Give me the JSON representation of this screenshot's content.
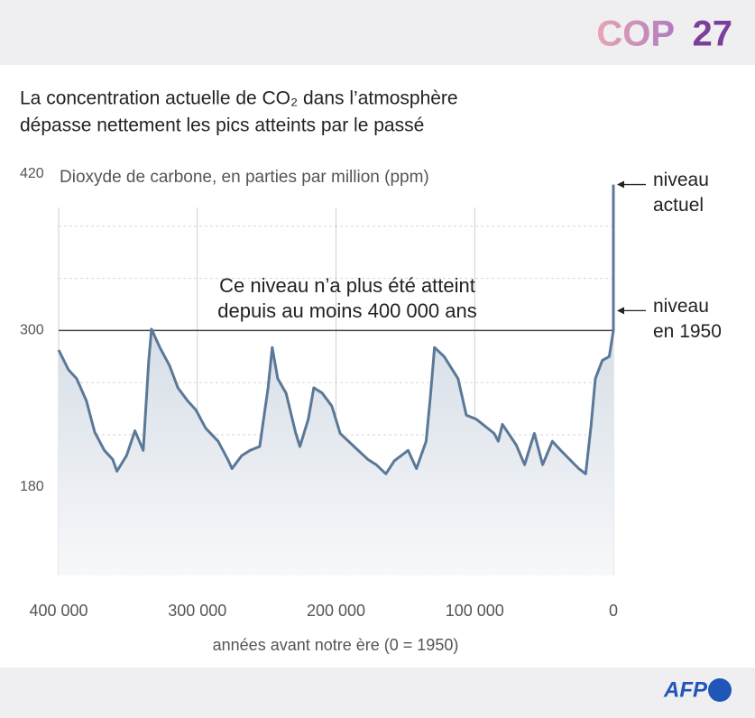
{
  "header": {
    "logo_cop": "COP",
    "logo_num": "27"
  },
  "footer": {
    "logo": "AFP"
  },
  "chart_data": {
    "type": "area",
    "title": [
      "La concentration actuelle de CO₂ dans l’atmosphère",
      "dépasse nettement les pics atteints par le passé"
    ],
    "subtitle": "Dioxyde de carbone, en parties par million (ppm)",
    "x_label": "années avant notre ère (0 = 1950)",
    "xlim": [
      400000,
      0
    ],
    "xticks": [
      {
        "value": 400000,
        "label": "400 000"
      },
      {
        "value": 300000,
        "label": "300 000"
      },
      {
        "value": 200000,
        "label": "200 000"
      },
      {
        "value": 100000,
        "label": "100 000"
      },
      0
    ],
    "ylim": [
      112,
      420
    ],
    "yticks": [
      180,
      300,
      420
    ],
    "y_gridlines": [
      140,
      180,
      220,
      260,
      340,
      380
    ],
    "color": "#5a7897",
    "x": [
      400000,
      393000,
      387000,
      380000,
      374000,
      367000,
      361000,
      358000,
      351000,
      345000,
      339000,
      335000,
      333000,
      327000,
      320000,
      314000,
      307000,
      301000,
      294000,
      285000,
      278000,
      275000,
      268000,
      262000,
      255000,
      249000,
      246000,
      242000,
      236000,
      229000,
      226000,
      220000,
      216000,
      210000,
      203000,
      197000,
      187000,
      177000,
      171000,
      164000,
      158000,
      148000,
      142000,
      135000,
      132000,
      129000,
      122000,
      112000,
      106000,
      99000,
      86000,
      83000,
      80000,
      70000,
      64000,
      60000,
      57000,
      51000,
      44000,
      38000,
      25000,
      20000,
      16000,
      13000,
      8000,
      3000,
      0,
      0
    ],
    "values": [
      285,
      270,
      263,
      246,
      222,
      208,
      201,
      192,
      204,
      223,
      208,
      277,
      301,
      287,
      273,
      256,
      246,
      239,
      225,
      215,
      201,
      194,
      204,
      208,
      211,
      256,
      287,
      263,
      252,
      221,
      211,
      232,
      256,
      252,
      242,
      221,
      211,
      201,
      197,
      190,
      200,
      208,
      194,
      215,
      249,
      287,
      280,
      263,
      235,
      232,
      221,
      215,
      228,
      212,
      197,
      211,
      221,
      197,
      215,
      208,
      194,
      190,
      228,
      263,
      277,
      280,
      300,
      412
    ],
    "reference_line": {
      "value": 300,
      "label": [
        "Ce niveau n’a plus été atteint",
        "depuis au moins 400 000 ans"
      ]
    },
    "annotations": [
      {
        "value": 412,
        "text": [
          "niveau",
          "actuel"
        ]
      },
      {
        "value": 300,
        "text": [
          "niveau",
          "en 1950"
        ]
      }
    ]
  }
}
